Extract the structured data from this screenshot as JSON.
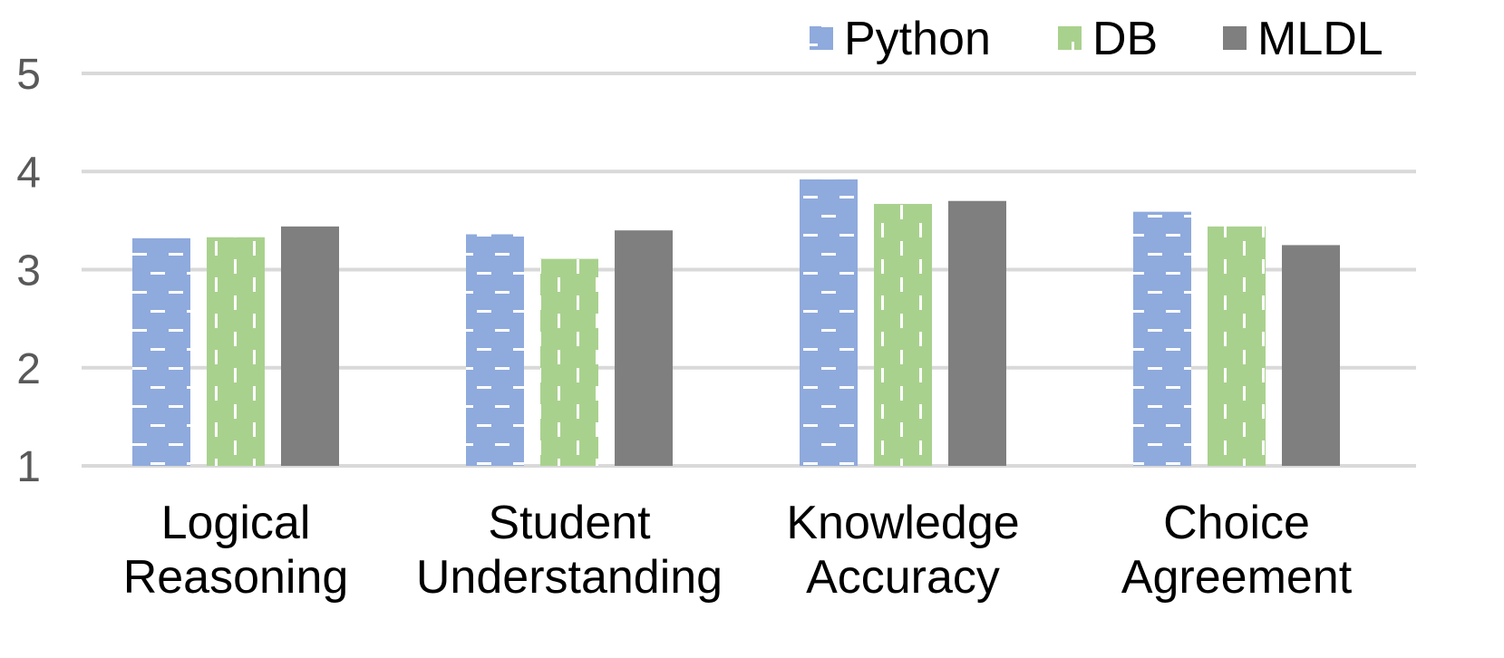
{
  "chart_data": {
    "type": "bar",
    "categories": [
      [
        "Logical",
        "Reasoning"
      ],
      [
        "Student",
        "Understanding"
      ],
      [
        "Knowledge",
        "Accuracy"
      ],
      [
        "Choice",
        "Agreement"
      ]
    ],
    "series": [
      {
        "name": "Python",
        "values": [
          3.32,
          3.36,
          3.92,
          3.59
        ],
        "color": "#8FAADC",
        "pattern": "dashed-horizontal"
      },
      {
        "name": "DB",
        "values": [
          3.33,
          3.11,
          3.67,
          3.44
        ],
        "color": "#A9D18E",
        "pattern": "dashed-vertical"
      },
      {
        "name": "MLDL",
        "values": [
          3.44,
          3.4,
          3.7,
          3.25
        ],
        "color": "#7F7F7F",
        "pattern": "solid"
      }
    ],
    "ylim": [
      1,
      5
    ],
    "yticks": [
      "1",
      "2",
      "3",
      "4",
      "5"
    ],
    "grid": true,
    "legend_position": "top-right",
    "title": "",
    "xlabel": "",
    "ylabel": ""
  }
}
